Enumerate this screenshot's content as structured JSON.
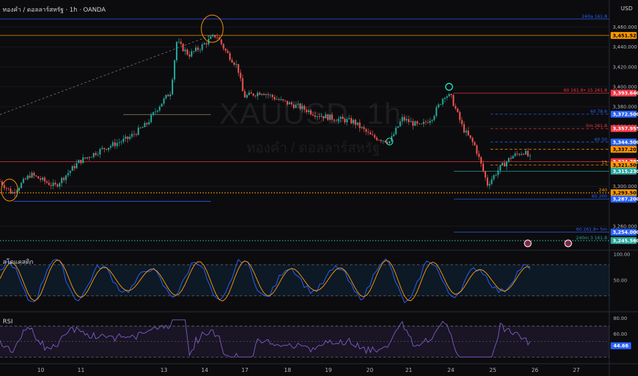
{
  "header": {
    "legend": "ทองคำ / ดอลลาร์สหรัฐ · 1h · OANDA",
    "currency": "USD",
    "watermark_symbol": "XAUUSD, 1h",
    "watermark_name": "ทองคำ / ดอลลาร์สหรัฐ"
  },
  "colors": {
    "up": "#26a69a",
    "down": "#ef5350",
    "stoch_k": "#2962ff",
    "stoch_d": "#ff9800",
    "rsi": "#7e57c2"
  },
  "chart_data": [
    {
      "type": "candlestick",
      "ylim": [
        3240,
        3472
      ],
      "y_ticks": [
        "3,460.000",
        "3,440.000",
        "3,420.000",
        "3,400.000",
        "3,380.000",
        "3,360.000",
        "3,300.000",
        "3,260.000"
      ],
      "x_ticks": [
        {
          "label": "10",
          "pos": 0.067
        },
        {
          "label": "11",
          "pos": 0.133
        },
        {
          "label": "13",
          "pos": 0.269
        },
        {
          "label": "14",
          "pos": 0.336
        },
        {
          "label": "17",
          "pos": 0.402
        },
        {
          "label": "18",
          "pos": 0.472
        },
        {
          "label": "19",
          "pos": 0.539
        },
        {
          "label": "20",
          "pos": 0.607
        },
        {
          "label": "21",
          "pos": 0.671
        },
        {
          "label": "24",
          "pos": 0.74
        },
        {
          "label": "25",
          "pos": 0.809
        },
        {
          "label": "26",
          "pos": 0.878
        },
        {
          "label": "27",
          "pos": 0.946
        }
      ],
      "path": [
        [
          0,
          3305
        ],
        [
          0.02,
          3293
        ],
        [
          0.05,
          3312
        ],
        [
          0.09,
          3300
        ],
        [
          0.13,
          3325
        ],
        [
          0.17,
          3338
        ],
        [
          0.21,
          3348
        ],
        [
          0.24,
          3362
        ],
        [
          0.26,
          3380
        ],
        [
          0.28,
          3395
        ],
        [
          0.29,
          3445
        ],
        [
          0.31,
          3432
        ],
        [
          0.33,
          3440
        ],
        [
          0.345,
          3448
        ],
        [
          0.355,
          3452
        ],
        [
          0.37,
          3436
        ],
        [
          0.39,
          3420
        ],
        [
          0.4,
          3390
        ],
        [
          0.43,
          3395
        ],
        [
          0.46,
          3386
        ],
        [
          0.49,
          3380
        ],
        [
          0.52,
          3372
        ],
        [
          0.55,
          3368
        ],
        [
          0.58,
          3365
        ],
        [
          0.61,
          3350
        ],
        [
          0.64,
          3345
        ],
        [
          0.66,
          3368
        ],
        [
          0.69,
          3360
        ],
        [
          0.71,
          3370
        ],
        [
          0.73,
          3392
        ],
        [
          0.74,
          3390
        ],
        [
          0.76,
          3358
        ],
        [
          0.78,
          3340
        ],
        [
          0.8,
          3302
        ],
        [
          0.82,
          3318
        ],
        [
          0.84,
          3330
        ],
        [
          0.86,
          3335
        ],
        [
          0.87,
          3328
        ]
      ],
      "levels": [
        {
          "label": "240a 161.8",
          "value": 3468,
          "color": "#2962ff",
          "style": "solid",
          "start": 0.0
        },
        {
          "label": "",
          "value": 3451.525,
          "color": "#ff9800",
          "style": "solid",
          "start": 0.0
        },
        {
          "label": "60 161.8• 15 261.8",
          "value": 3393.64,
          "color": "#f23645",
          "style": "solid",
          "start": 0.745
        },
        {
          "label": "60 78.6",
          "value": 3372.5,
          "color": "#2962ff",
          "style": "dashed",
          "start": 0.805
        },
        {
          "label": "5m 261.8",
          "value": 3357.955,
          "color": "#f23645",
          "style": "dashed",
          "start": 0.805
        },
        {
          "label": "60 50",
          "value": 3344.5,
          "color": "#2962ff",
          "style": "dashed",
          "start": 0.805
        },
        {
          "label": "",
          "value": 3337.205,
          "color": "#ff9800",
          "style": "dashed",
          "start": 0.805
        },
        {
          "label": "",
          "value": 3324.785,
          "color": "#f23645",
          "style": "solid",
          "start": 0.0
        },
        {
          "label": "15",
          "value": 3321.5,
          "color": "#ff9800",
          "style": "dashed",
          "start": 0.805
        },
        {
          "label": "",
          "value": 3315.23,
          "color": "#26a69a",
          "style": "solid",
          "start": 0.745
        },
        {
          "label": "240",
          "value": 3293.5,
          "color": "#ff9800",
          "style": "dotted",
          "start": 0.0
        },
        {
          "label": "60 200",
          "value": 3287.2,
          "color": "#2962ff",
          "style": "solid",
          "start": 0.745
        },
        {
          "label": "60 261.8• 5m",
          "value": 3254,
          "color": "#2962ff",
          "style": "solid",
          "start": 0.745
        },
        {
          "label": "240m 3 161.8",
          "value": 3245.56,
          "color": "#26a69a",
          "style": "dotted",
          "start": 0.0
        }
      ],
      "tags": [
        {
          "text": "3,451.525",
          "value": 3451.525,
          "bg": "#ff9800",
          "fg": "#000000"
        },
        {
          "text": "3,393.640",
          "value": 3393.64,
          "bg": "#f23645",
          "fg": "#ffffff"
        },
        {
          "text": "3,372.500",
          "value": 3372.5,
          "bg": "#2962ff",
          "fg": "#ffffff"
        },
        {
          "text": "3,357.955",
          "value": 3357.955,
          "bg": "#f23645",
          "fg": "#ffffff"
        },
        {
          "text": "3,344.500",
          "value": 3344.5,
          "bg": "#2962ff",
          "fg": "#ffffff"
        },
        {
          "text": "3,337.205",
          "value": 3337.205,
          "bg": "#ff9800",
          "fg": "#000000"
        },
        {
          "text": "3,324.785",
          "value": 3324.785,
          "bg": "#f23645",
          "fg": "#ffffff"
        },
        {
          "text": "3,321.500",
          "value": 3321.5,
          "bg": "#ff9800",
          "fg": "#000000"
        },
        {
          "text": "3,315.230",
          "value": 3315.23,
          "bg": "#26a69a",
          "fg": "#ffffff"
        },
        {
          "text": "3,293.500",
          "value": 3293.5,
          "bg": "#ff9800",
          "fg": "#000000"
        },
        {
          "text": "3,287.200",
          "value": 3287.2,
          "bg": "#2962ff",
          "fg": "#ffffff"
        },
        {
          "text": "3,254.000",
          "value": 3254,
          "bg": "#2962ff",
          "fg": "#ffffff"
        },
        {
          "text": "3,245.560",
          "value": 3245.56,
          "bg": "#26a69a",
          "fg": "#ffffff"
        }
      ]
    },
    {
      "type": "line",
      "title": "สโตแคสติก",
      "ylim": [
        0,
        100
      ],
      "y_ticks": [
        "100.00",
        "50.00"
      ],
      "band": [
        20,
        80
      ],
      "series": [
        {
          "name": "%K"
        },
        {
          "name": "%D"
        }
      ]
    },
    {
      "type": "line",
      "title": "RSI",
      "ylim": [
        25,
        85
      ],
      "y_ticks": [
        "80.00",
        "60.00"
      ],
      "current_value": "44.66",
      "band": [
        30,
        70
      ]
    }
  ]
}
